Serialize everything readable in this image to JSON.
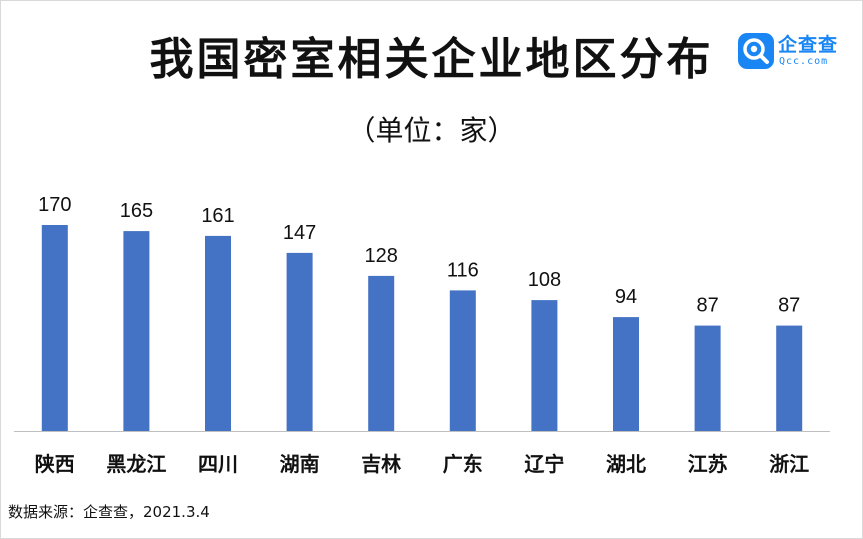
{
  "logo": {
    "name": "企查查",
    "domain": "Qcc.com",
    "icon": "qcc-logo-icon",
    "color": "#1a86f4"
  },
  "source_note": "数据来源：企查查，2021.3.4",
  "chart_data": {
    "type": "bar",
    "title": "我国密室相关企业地区分布",
    "subtitle": "（单位：家）",
    "categories": [
      "陕西",
      "黑龙江",
      "四川",
      "湖南",
      "吉林",
      "广东",
      "辽宁",
      "湖北",
      "江苏",
      "浙江"
    ],
    "values": [
      170,
      165,
      161,
      147,
      128,
      116,
      108,
      94,
      87,
      87
    ],
    "ylim": [
      0,
      180
    ],
    "bar_color": "#4472c4",
    "grid": false,
    "legend": false,
    "data_labels": true
  }
}
